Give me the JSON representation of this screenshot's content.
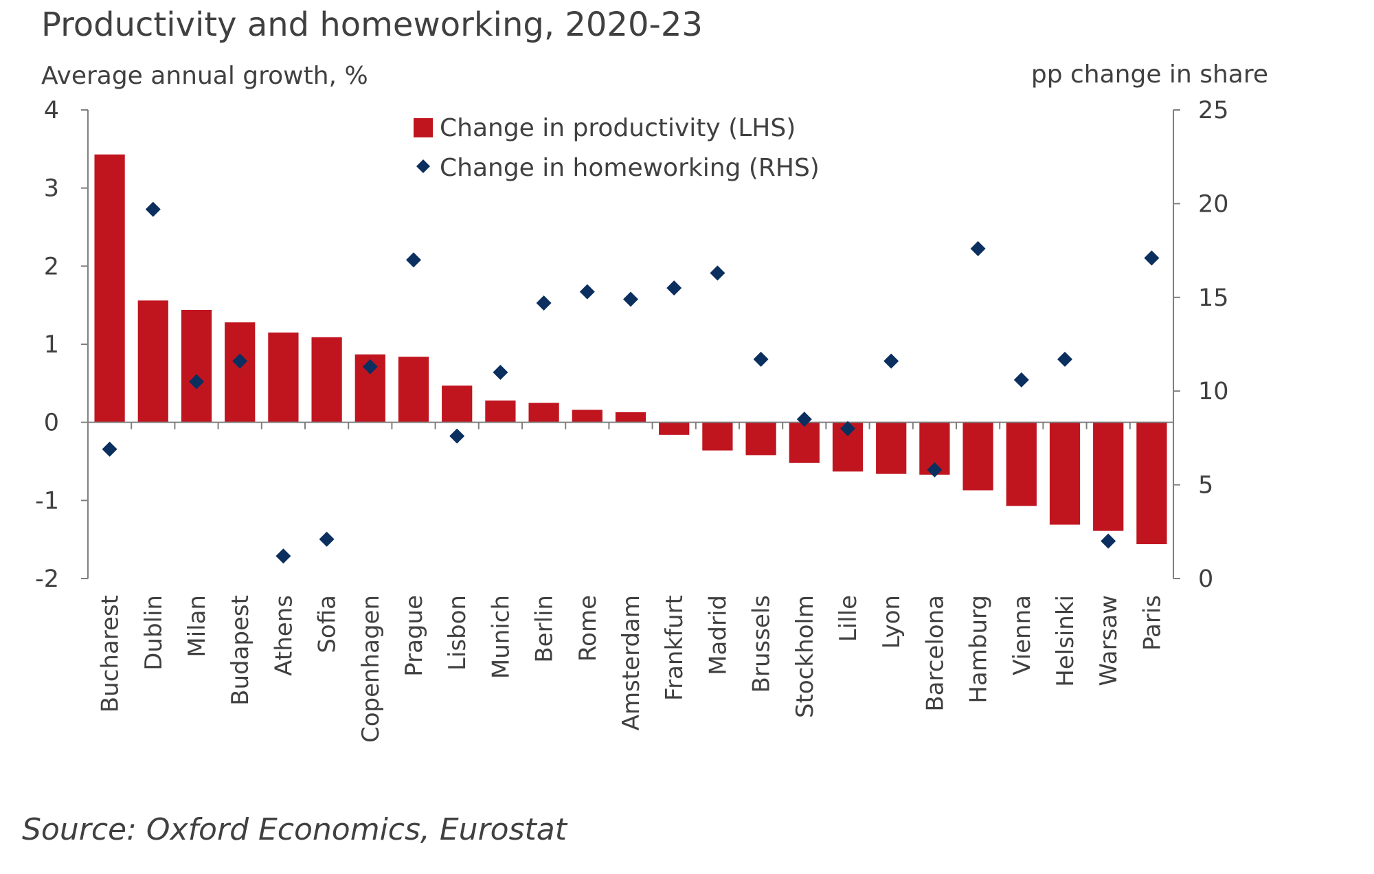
{
  "chart_data": {
    "type": "bar",
    "title": "Productivity and homeworking, 2020-23",
    "ylabel_left": "Average annual growth, %",
    "ylabel_right": "pp change in share",
    "source": "Source: Oxford Economics, Eurostat",
    "categories": [
      "Bucharest",
      "Dublin",
      "Milan",
      "Budapest",
      "Athens",
      "Sofia",
      "Copenhagen",
      "Prague",
      "Lisbon",
      "Munich",
      "Berlin",
      "Rome",
      "Amsterdam",
      "Frankfurt",
      "Madrid",
      "Brussels",
      "Stockholm",
      "Lille",
      "Lyon",
      "Barcelona",
      "Hamburg",
      "Vienna",
      "Helsinki",
      "Warsaw",
      "Paris"
    ],
    "series": [
      {
        "name": "Change in productivity (LHS)",
        "type": "bar",
        "axis": "left",
        "color": "#c0151f",
        "values": [
          3.43,
          1.56,
          1.44,
          1.28,
          1.15,
          1.09,
          0.87,
          0.84,
          0.47,
          0.28,
          0.25,
          0.16,
          0.13,
          -0.16,
          -0.36,
          -0.42,
          -0.52,
          -0.63,
          -0.66,
          -0.67,
          -0.87,
          -1.07,
          -1.31,
          -1.39,
          -1.56
        ]
      },
      {
        "name": "Change in homeworking (RHS)",
        "type": "scatter",
        "axis": "right",
        "color": "#0b2f5e",
        "values": [
          6.9,
          19.7,
          10.5,
          11.6,
          1.2,
          2.1,
          11.3,
          17.0,
          7.6,
          11.0,
          14.7,
          15.3,
          14.9,
          15.5,
          16.3,
          11.7,
          8.5,
          8.0,
          11.6,
          5.8,
          17.6,
          10.6,
          11.7,
          2.0,
          17.1
        ]
      }
    ],
    "y_left": {
      "lim": [
        -2,
        4
      ],
      "ticks": [
        4,
        3,
        2,
        1,
        0,
        -1,
        -2
      ]
    },
    "y_right": {
      "lim": [
        0,
        25
      ],
      "ticks": [
        25,
        20,
        15,
        10,
        5,
        0
      ]
    },
    "legend_position": "top-center",
    "grid": false
  }
}
